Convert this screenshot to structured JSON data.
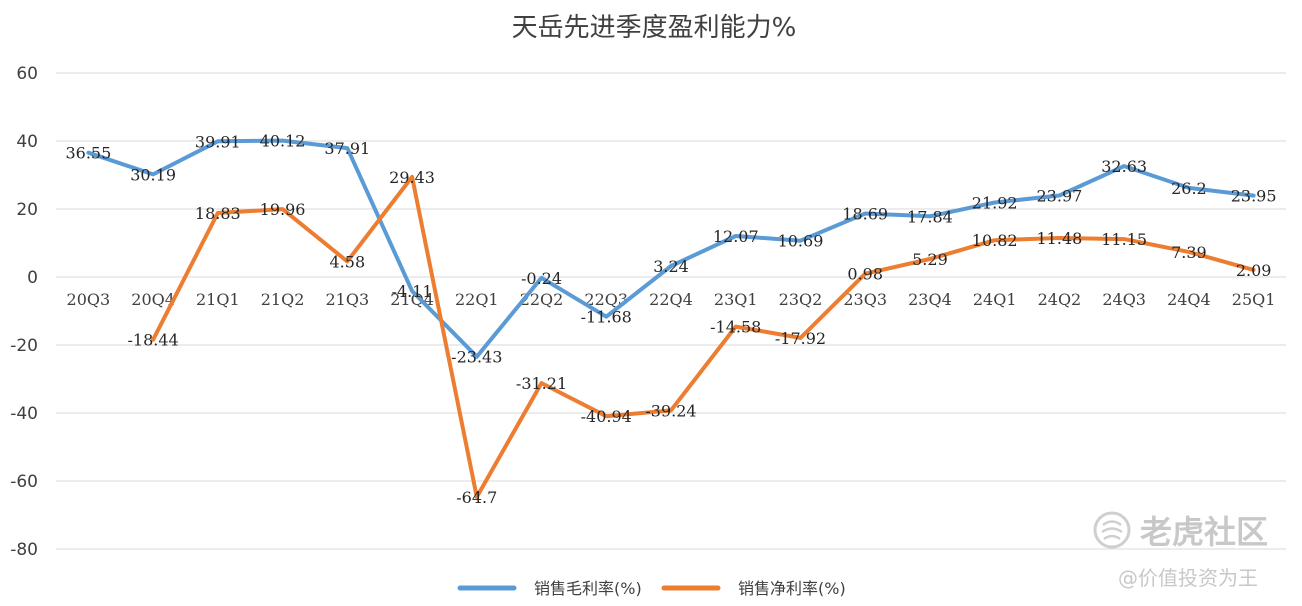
{
  "chart_data": {
    "type": "line",
    "title": "天岳先进季度盈利能力%",
    "categories": [
      "20Q3",
      "20Q4",
      "21Q1",
      "21Q2",
      "21Q3",
      "21Q4",
      "22Q1",
      "22Q2",
      "22Q3",
      "22Q4",
      "23Q1",
      "23Q2",
      "23Q3",
      "23Q4",
      "24Q1",
      "24Q2",
      "24Q3",
      "24Q4",
      "25Q1"
    ],
    "ylim": [
      -80,
      60
    ],
    "yticks": [
      60,
      40,
      20,
      0,
      -20,
      -40,
      -60,
      -80
    ],
    "grid": true,
    "legend_position": "bottom",
    "series": [
      {
        "name": "销售毛利率(%)",
        "color": "#5b9bd5",
        "values": [
          36.55,
          30.19,
          39.91,
          40.12,
          37.91,
          -4.11,
          -23.43,
          -0.24,
          -11.68,
          3.24,
          12.07,
          10.69,
          18.69,
          17.84,
          21.92,
          23.97,
          32.63,
          26.2,
          23.95
        ],
        "labels": [
          "36.55",
          "30.19",
          "39.91",
          "40.12",
          "37.91",
          "-4.11",
          "-23.43",
          "-0.24",
          "-11.68",
          "3.24",
          "12.07",
          "10.69",
          "18.69",
          "17.84",
          "21.92",
          "23.97",
          "32.63",
          "26.2",
          "23.95"
        ]
      },
      {
        "name": "销售净利率(%)",
        "color": "#ed7d31",
        "values": [
          null,
          -18.44,
          18.83,
          19.96,
          4.58,
          29.43,
          -64.7,
          -31.21,
          -40.94,
          -39.24,
          -14.58,
          -17.92,
          0.98,
          5.29,
          10.82,
          11.48,
          11.15,
          7.39,
          2.09
        ],
        "labels": [
          "",
          "-18.44",
          "18.83",
          "19.96",
          "4.58",
          "29.43",
          "-64.7",
          "-31.21",
          "-40.94",
          "-39.24",
          "-14.58",
          "-17.92",
          "0.98",
          "5.29",
          "10.82",
          "11.48",
          "11.15",
          "7.39",
          "2.09"
        ]
      }
    ]
  },
  "watermark": {
    "brand": "老虎社区",
    "author": "@价值投资为王",
    "icon": "tiger-logo-icon",
    "color": "#c8c8c8"
  }
}
